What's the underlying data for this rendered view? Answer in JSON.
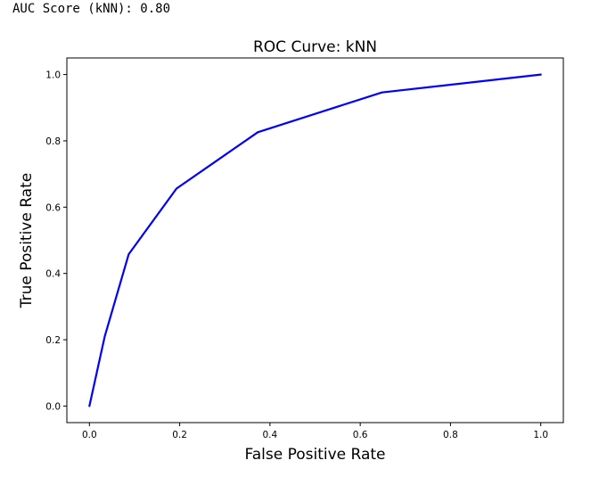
{
  "output": {
    "auc_text": "AUC Score (kNN): 0.80"
  },
  "chart_data": {
    "type": "line",
    "title": "ROC Curve: kNN",
    "xlabel": "False Positive Rate",
    "ylabel": "True Positive Rate",
    "xlim": [
      -0.05,
      1.05
    ],
    "ylim": [
      -0.05,
      1.05
    ],
    "xticks": [
      "0.0",
      "0.2",
      "0.4",
      "0.6",
      "0.8",
      "1.0"
    ],
    "yticks": [
      "0.0",
      "0.2",
      "0.4",
      "0.6",
      "0.8",
      "1.0"
    ],
    "grid": false,
    "series": [
      {
        "color": "#0000ff",
        "x": [
          0.0,
          0.034,
          0.087,
          0.193,
          0.373,
          0.648,
          1.0
        ],
        "y": [
          0.0,
          0.21,
          0.458,
          0.656,
          0.826,
          0.946,
          1.0
        ]
      }
    ]
  }
}
